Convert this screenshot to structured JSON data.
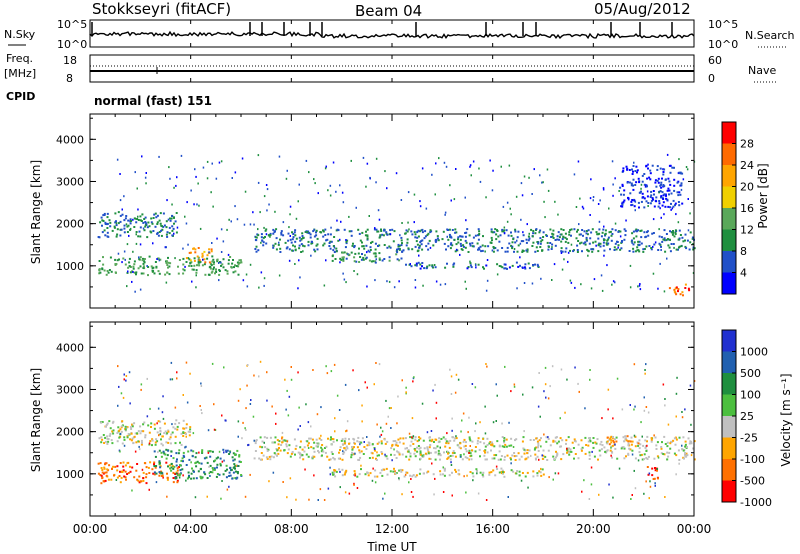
{
  "header": {
    "station": "Stokkseyri (fitACF)",
    "beam": "Beam 04",
    "date": "05/Aug/2012"
  },
  "noise_panel": {
    "left_label": "N.Sky",
    "right_label": "N.Search",
    "left_ticks": [
      "10^5",
      "10^0"
    ],
    "right_ticks": [
      "10^5",
      "10^0"
    ]
  },
  "freq_panel": {
    "left_label_1": "Freq.",
    "left_label_2": "[MHz]",
    "right_label": "Nave",
    "left_ticks": [
      "18",
      "8"
    ],
    "right_ticks": [
      "60",
      "0"
    ],
    "cpid_label": "CPID",
    "cpid_value": "normal (fast) 151"
  },
  "colors": {
    "power": [
      "#0000ff",
      "#2050c8",
      "#1f8f3f",
      "#5aa85a",
      "#f0d000",
      "#ffa500",
      "#ff6a00",
      "#ff0000"
    ],
    "velocity": [
      "#2030d0",
      "#2060b0",
      "#1f8f3f",
      "#4cbf3f",
      "#c0c0c0",
      "#ffa500",
      "#ff7000",
      "#ff0000"
    ]
  },
  "chart_data": [
    {
      "type": "heatmap",
      "name": "power",
      "ylabel": "Slant Range [km]",
      "yticks": [
        "1000",
        "2000",
        "3000",
        "4000"
      ],
      "ylim": [
        0,
        4600
      ],
      "xlim": [
        "00:00",
        "24:00"
      ],
      "colorbar_label": "Power [dB]",
      "colorbar_ticks": [
        "4",
        "8",
        "12",
        "16",
        "20",
        "24",
        "28"
      ],
      "colorbar_range": [
        0,
        32
      ],
      "scatter_bands": [
        {
          "t0": 0.3,
          "t1": 6.0,
          "r0": 800,
          "r1": 1250,
          "level": 12
        },
        {
          "t0": 3.8,
          "t1": 4.8,
          "r0": 1100,
          "r1": 1450,
          "level": 22
        },
        {
          "t0": 0.3,
          "t1": 3.5,
          "r0": 1700,
          "r1": 2300,
          "level": 8
        },
        {
          "t0": 6.5,
          "t1": 24.0,
          "r0": 1350,
          "r1": 1900,
          "level": 8
        },
        {
          "t0": 9.5,
          "t1": 12.5,
          "r0": 1100,
          "r1": 1350,
          "level": 10
        },
        {
          "t0": 12.5,
          "t1": 18.0,
          "r0": 950,
          "r1": 1100,
          "level": 6
        },
        {
          "t0": 21.0,
          "t1": 23.5,
          "r0": 2400,
          "r1": 3400,
          "level": 4
        },
        {
          "t0": 23.0,
          "t1": 23.8,
          "r0": 300,
          "r1": 600,
          "level": 26
        }
      ]
    },
    {
      "type": "heatmap",
      "name": "velocity",
      "ylabel": "Slant Range [km]",
      "yticks": [
        "1000",
        "2000",
        "3000",
        "4000"
      ],
      "ylim": [
        0,
        4600
      ],
      "xlim": [
        "00:00",
        "24:00"
      ],
      "xticks": [
        "00:00",
        "04:00",
        "08:00",
        "12:00",
        "16:00",
        "20:00",
        "00:00"
      ],
      "xlabel": "Time UT",
      "colorbar_label": "Velocity [m s⁻¹]",
      "colorbar_ticks": [
        "1000",
        "500",
        "100",
        "25",
        "-25",
        "-100",
        "-500",
        "-1000"
      ],
      "scatter_bands": [
        {
          "t0": 0.3,
          "t1": 3.5,
          "r0": 800,
          "r1": 1300,
          "level": 6
        },
        {
          "t0": 2.5,
          "t1": 6.0,
          "r0": 900,
          "r1": 1600,
          "level": 2
        },
        {
          "t0": 0.3,
          "t1": 4.0,
          "r0": 1700,
          "r1": 2300,
          "level": 4
        },
        {
          "t0": 6.5,
          "t1": 24.0,
          "r0": 1350,
          "r1": 1900,
          "level": 4
        },
        {
          "t0": 9.5,
          "t1": 18.0,
          "r0": 950,
          "r1": 1150,
          "level": 4
        },
        {
          "t0": 20.5,
          "t1": 21.8,
          "r0": 1700,
          "r1": 1950,
          "level": 5
        },
        {
          "t0": 22.0,
          "t1": 22.6,
          "r0": 900,
          "r1": 1200,
          "level": 7
        }
      ]
    }
  ]
}
